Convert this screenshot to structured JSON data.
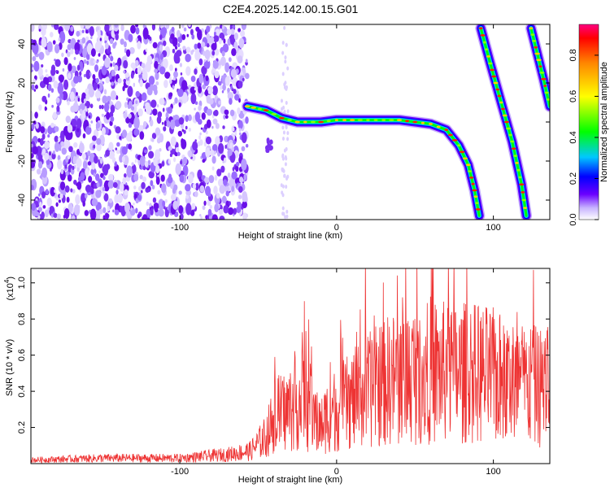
{
  "title": "C2E4.2025.142.00.15.G01",
  "chart_data": [
    {
      "type": "heatmap",
      "xlabel": "Height of straight line (km)",
      "ylabel": "Frequency (Hz)",
      "xlim": [
        -195,
        136
      ],
      "ylim": [
        -50,
        50
      ],
      "xticks": [
        -100,
        0,
        100
      ],
      "yticks": [
        -40,
        -20,
        0,
        20,
        40
      ],
      "colorbar": {
        "label": "Normalized spectral amplitude",
        "range": [
          0,
          0.95
        ],
        "ticks": [
          0.0,
          0.2,
          0.4,
          0.6,
          0.8
        ],
        "tick_labels": [
          "0.0",
          "0.2",
          "0.4",
          "0.6",
          "0.8"
        ]
      },
      "noise_region": {
        "x": [
          -195,
          -57
        ],
        "amplitude": 0.15
      },
      "tracks": [
        {
          "x": [
            -57,
            -45,
            -35,
            -25,
            -10,
            0,
            20,
            40,
            60,
            70,
            78,
            84,
            88,
            91
          ],
          "y": [
            8,
            6,
            2,
            0,
            0,
            1,
            1,
            1,
            -1,
            -4,
            -12,
            -22,
            -35,
            -48
          ]
        },
        {
          "x": [
            92,
            98,
            105,
            112,
            118,
            121
          ],
          "y": [
            48,
            30,
            10,
            -10,
            -32,
            -48
          ]
        },
        {
          "x": [
            124,
            128,
            132,
            136
          ],
          "y": [
            48,
            35,
            22,
            8
          ]
        }
      ]
    },
    {
      "type": "line",
      "xlabel": "Height of straight line (km)",
      "ylabel": "SNR (10 * v/v)",
      "ylabel_multiplier": "(x10",
      "ylabel_exponent": "4",
      "xlim": [
        -195,
        136
      ],
      "ylim": [
        0,
        1.08
      ],
      "xticks": [
        -100,
        0,
        100
      ],
      "yticks": [
        0.2,
        0.4,
        0.6,
        0.8,
        1.0
      ],
      "color": "#ee3333",
      "series": [
        {
          "x": [
            -195,
            -150,
            -100,
            -70,
            -55,
            -45,
            -40,
            -35,
            -30,
            -25,
            -20,
            -15,
            -10,
            -5,
            0,
            10,
            20,
            30,
            40,
            50,
            60,
            70,
            80,
            90,
            100,
            110,
            120,
            130,
            136
          ],
          "y": [
            0.02,
            0.03,
            0.03,
            0.05,
            0.07,
            0.15,
            0.25,
            0.28,
            0.3,
            0.34,
            0.36,
            0.25,
            0.2,
            0.28,
            0.3,
            0.35,
            0.4,
            0.45,
            0.48,
            0.5,
            0.52,
            0.5,
            0.5,
            0.5,
            0.48,
            0.45,
            0.44,
            0.42,
            0.45
          ]
        }
      ]
    }
  ]
}
